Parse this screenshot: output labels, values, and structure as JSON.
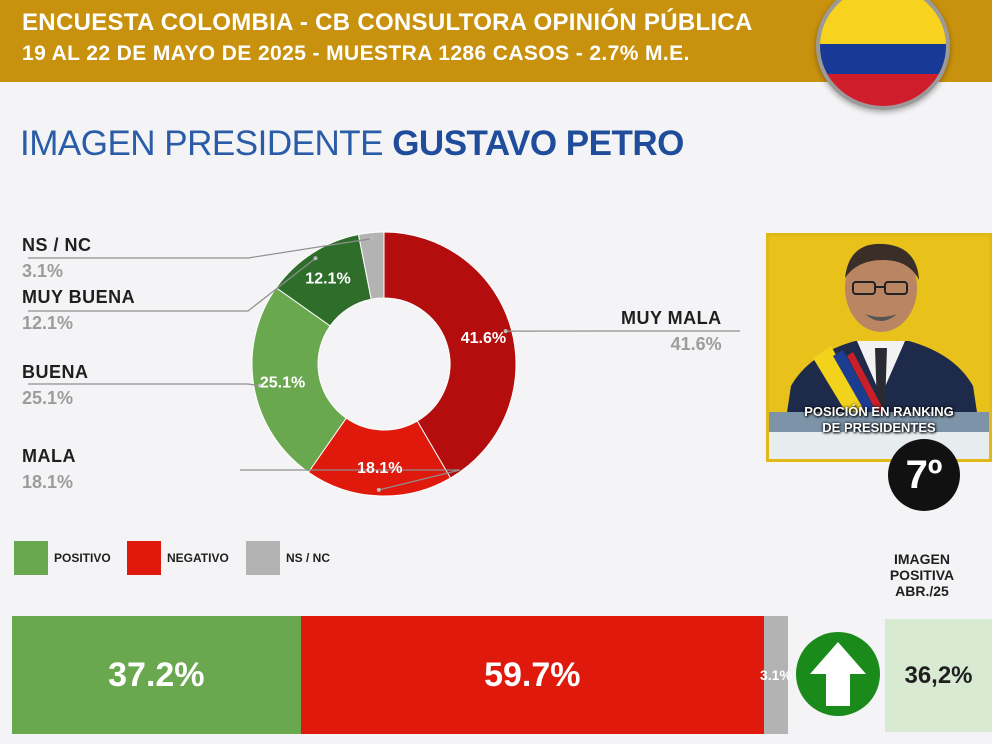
{
  "header": {
    "line1": "ENCUESTA COLOMBIA - CB CONSULTORA OPINIÓN PÚBLICA",
    "line2": "19 AL 22 DE MAYO DE 2025 - MUESTRA 1286 CASOS - 2.7% M.E."
  },
  "title": {
    "prefix": "IMAGEN PRESIDENTE",
    "name": "GUSTAVO PETRO"
  },
  "colors": {
    "muy_buena": "#2f6e2a",
    "buena": "#6aa84f",
    "mala": "#e0190d",
    "muy_mala": "#b30d0d",
    "ns_nc": "#b3b3b3",
    "positivo": "#6aa84f",
    "negativo": "#e0190d",
    "header": "#c9920e",
    "flag_yellow": "#f7d21e",
    "flag_blue": "#173a97",
    "flag_red": "#cf1d2b"
  },
  "chart_data": [
    {
      "type": "pie",
      "title": "IMAGEN PRESIDENTE GUSTAVO PETRO",
      "slices": [
        {
          "label": "MUY MALA",
          "value": 41.6,
          "display": "41.6%"
        },
        {
          "label": "MALA",
          "value": 18.1,
          "display": "18.1%"
        },
        {
          "label": "BUENA",
          "value": 25.1,
          "display": "25.1%"
        },
        {
          "label": "MUY BUENA",
          "value": 12.1,
          "display": "12.1%"
        },
        {
          "label": "NS / NC",
          "value": 3.1,
          "display": "3.1%"
        }
      ]
    },
    {
      "type": "bar",
      "orientation": "horizontal-stacked",
      "categories": [
        "POSITIVO",
        "NEGATIVO",
        "NS / NC"
      ],
      "values": [
        37.2,
        59.7,
        3.1
      ],
      "labels": [
        "37.2%",
        "59.7%",
        "3.1%"
      ],
      "legend": [
        "POSITIVO",
        "NEGATIVO",
        "NS / NC"
      ]
    }
  ],
  "ranking": {
    "label_line1": "POSICIÓN EN RANKING",
    "label_line2": "DE PRESIDENTES",
    "position": "7º"
  },
  "previous": {
    "title_line1": "IMAGEN",
    "title_line2": "POSITIVA",
    "title_line3": "ABR./25",
    "value": "36,2%",
    "trend": "up-arrow-icon"
  }
}
